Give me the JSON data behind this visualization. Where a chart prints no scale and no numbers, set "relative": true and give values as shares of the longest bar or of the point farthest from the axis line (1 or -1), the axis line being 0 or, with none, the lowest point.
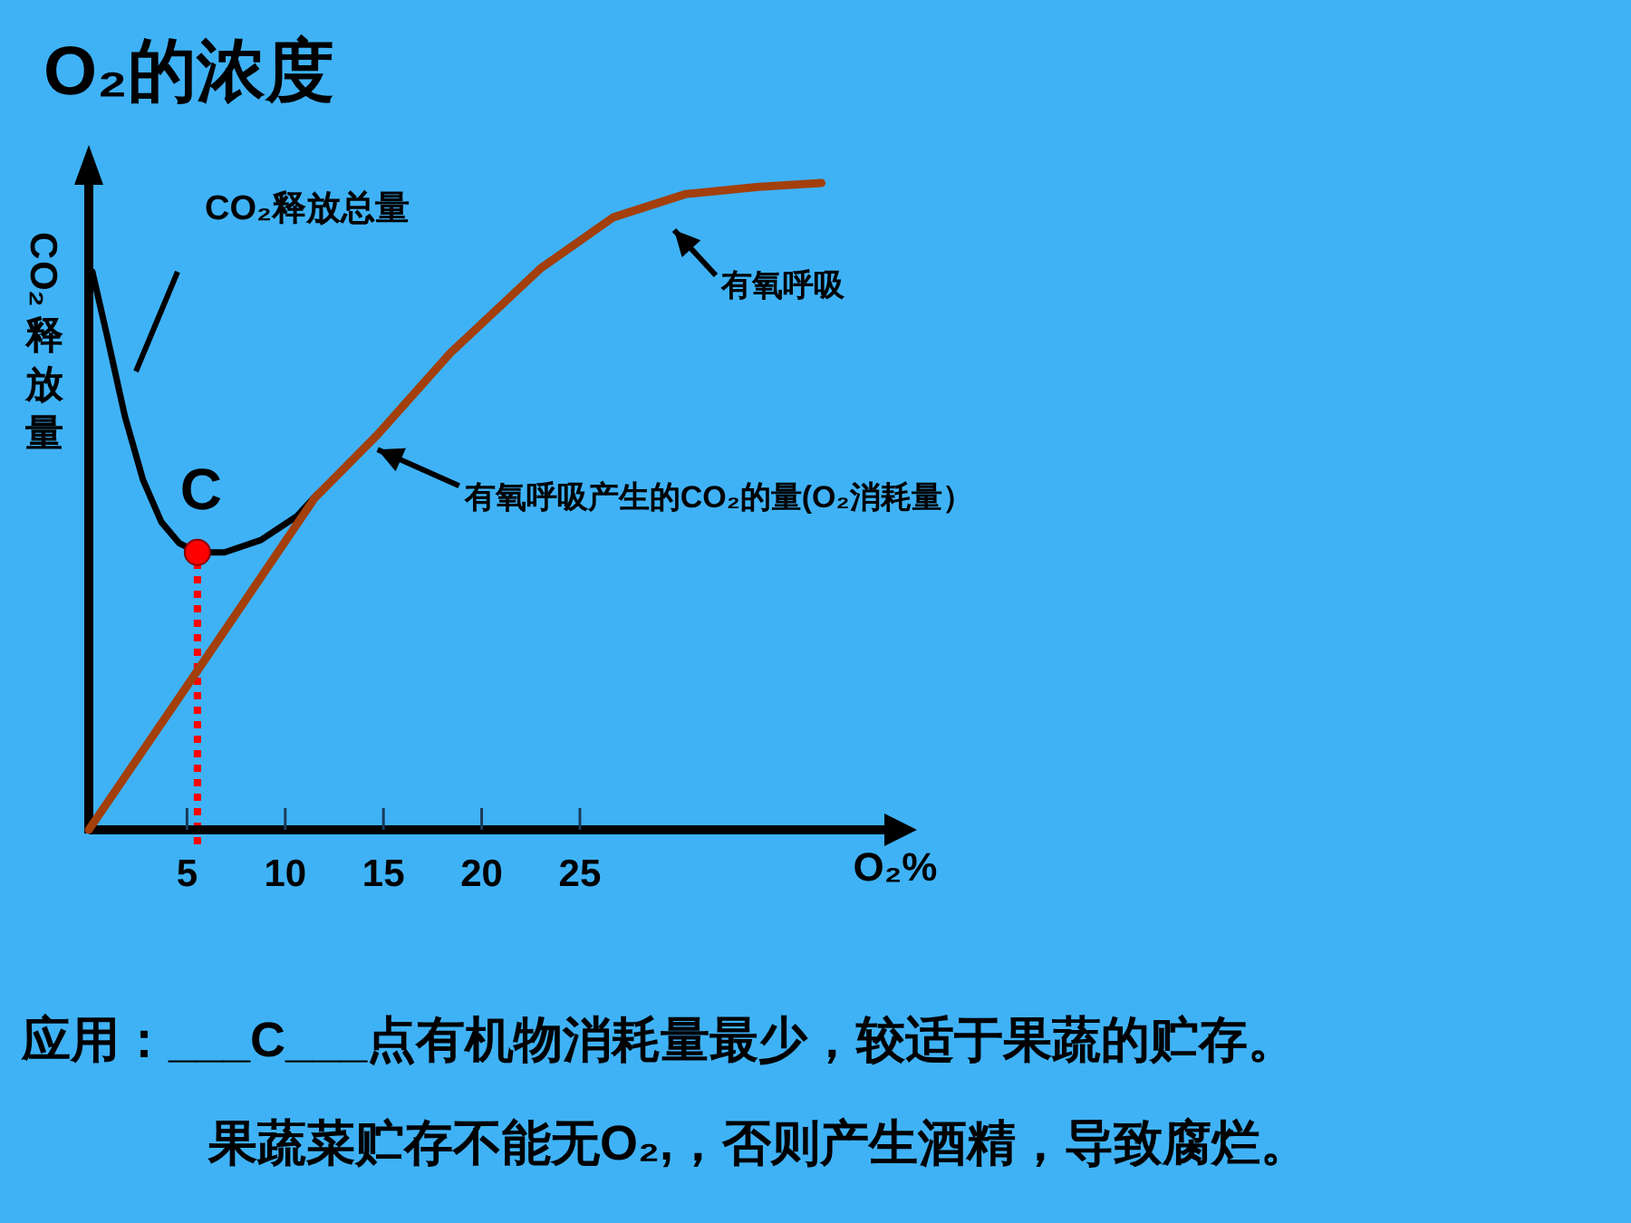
{
  "chart_data": {
    "type": "line",
    "title": "O₂的浓度",
    "xlabel": "O₂%",
    "ylabel": "CO₂释放量",
    "relative": true,
    "legend": false,
    "grid": false,
    "xlim": [
      0,
      40.5
    ],
    "xticks": [
      5,
      10,
      15,
      20,
      25
    ],
    "series": [
      {
        "name": null,
        "color": "#000000",
        "x": [
          0.18,
          0.92,
          1.84,
          2.76,
          3.69,
          4.61,
          5.53,
          6.91,
          8.76,
          10.6,
          11.6
        ],
        "values": [
          0.863,
          0.765,
          0.639,
          0.541,
          0.476,
          0.443,
          0.429,
          0.429,
          0.448,
          0.485,
          0.518
        ]
      },
      {
        "name": null,
        "color": "#a33f0b",
        "x": [
          0,
          5.53,
          11.5,
          14.7,
          18.4,
          23.0,
          26.7,
          30.4,
          34.1,
          37.3
        ],
        "values": [
          0,
          0.246,
          0.513,
          0.611,
          0.737,
          0.868,
          0.947,
          0.983,
          0.994,
          1.0
        ]
      },
      {
        "name": null,
        "type": "scatter",
        "color": "#ff0000",
        "x": [
          5.53
        ],
        "values": [
          0.429
        ]
      }
    ],
    "ref_lines": [
      {
        "axis": "x",
        "value": 5.53,
        "color": "#ff0000",
        "line_style": "dotted"
      }
    ],
    "annotations": [
      {
        "text": "C",
        "x": 5.53,
        "y": 0.429
      },
      "CO₂释放总量",
      "有氧呼吸",
      {
        "text": "有氧呼吸产生的CO₂的量(O₂消耗量）",
        "x": 14.7,
        "y": 0.588
      },
      "应用：___C___点有机物消耗量最少，较适于果蔬的贮存。",
      "果蔬菜贮存不能无O₂,，否则产生酒精，导致腐烂。"
    ]
  }
}
